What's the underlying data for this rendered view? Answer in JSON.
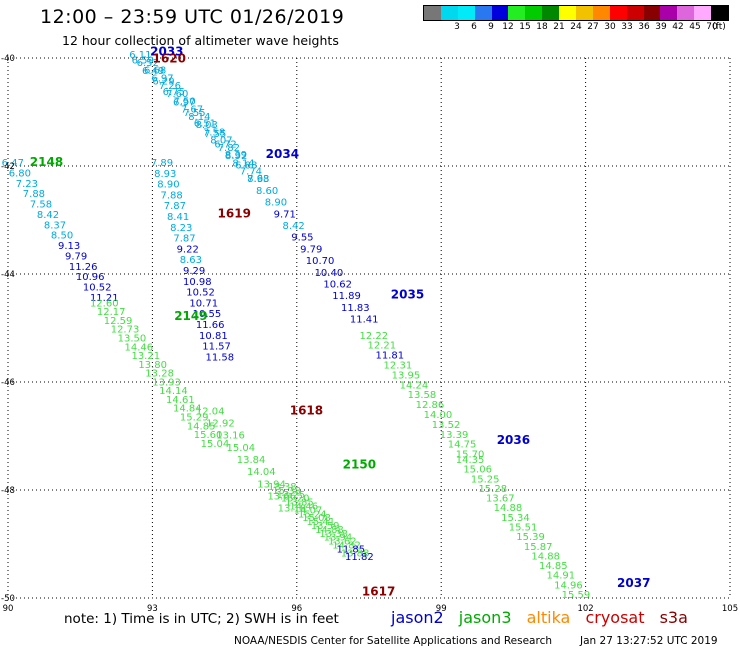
{
  "title": "12:00 – 23:59 UTC 01/26/2019",
  "subtitle": "12 hour collection of altimeter wave heights",
  "legend": {
    "unit": "(ft)",
    "items": [
      {
        "label": "",
        "color": "#777777"
      },
      {
        "label": "3",
        "color": "#00d8f0"
      },
      {
        "label": "6",
        "color": "#00eaf8"
      },
      {
        "label": "9",
        "color": "#2a78f0"
      },
      {
        "label": "12",
        "color": "#0000dd"
      },
      {
        "label": "15",
        "color": "#22ee22"
      },
      {
        "label": "18",
        "color": "#00cc00"
      },
      {
        "label": "21",
        "color": "#008800"
      },
      {
        "label": "24",
        "color": "#ffff00"
      },
      {
        "label": "27",
        "color": "#f2c200"
      },
      {
        "label": "30",
        "color": "#ff8800"
      },
      {
        "label": "33",
        "color": "#ff0000"
      },
      {
        "label": "36",
        "color": "#cc0000"
      },
      {
        "label": "39",
        "color": "#880000"
      },
      {
        "label": "42",
        "color": "#aa00aa"
      },
      {
        "label": "45",
        "color": "#dd66dd"
      },
      {
        "label": "70",
        "color": "#ffaaff"
      },
      {
        "label": "",
        "color": "#000000"
      }
    ]
  },
  "axes": {
    "lon_ticks": [
      "90",
      "93",
      "96",
      "99",
      "102",
      "105"
    ],
    "lat_ticks": [
      "-40",
      "-42",
      "-44",
      "-46",
      "-48",
      "-50"
    ],
    "lon_range": [
      90,
      105
    ],
    "lat_range": [
      -40,
      -50
    ]
  },
  "colors": {
    "jason2": "#0000cc",
    "jason3": "#00aa00",
    "altika": "#ff8800",
    "cryosat": "#cc0000",
    "s3a": "#880000",
    "wave_low": "#00aadd",
    "wave_mid": "#0000cc",
    "wave_high": "#44dd44"
  },
  "pass_labels": [
    {
      "text": "2033",
      "lon": 93.3,
      "lat": -39.95,
      "sat": "jason2"
    },
    {
      "text": "1620",
      "lon": 93.35,
      "lat": -40.08,
      "sat": "s3a"
    },
    {
      "text": "2034",
      "lon": 95.7,
      "lat": -41.85,
      "sat": "jason2"
    },
    {
      "text": "2148",
      "lon": 90.8,
      "lat": -42.0,
      "sat": "jason3"
    },
    {
      "text": "1619",
      "lon": 94.7,
      "lat": -42.95,
      "sat": "s3a"
    },
    {
      "text": "2035",
      "lon": 98.3,
      "lat": -44.45,
      "sat": "jason2"
    },
    {
      "text": "2149",
      "lon": 93.8,
      "lat": -44.85,
      "sat": "jason3"
    },
    {
      "text": "1618",
      "lon": 96.2,
      "lat": -46.6,
      "sat": "s3a"
    },
    {
      "text": "2036",
      "lon": 100.5,
      "lat": -47.15,
      "sat": "jason2"
    },
    {
      "text": "2150",
      "lon": 97.3,
      "lat": -47.6,
      "sat": "jason3"
    },
    {
      "text": "2037",
      "lon": 103.0,
      "lat": -49.8,
      "sat": "jason2"
    },
    {
      "text": "1617",
      "lon": 97.7,
      "lat": -49.95,
      "sat": "s3a"
    }
  ],
  "tracks": [
    {
      "pass": "1620",
      "sat": "s3a",
      "start": {
        "lon": 92.75,
        "lat": -40.0
      },
      "end": {
        "lon": 95.2,
        "lat": -42.3
      },
      "values": [
        "6.11",
        "6.52",
        "6.68",
        "6.97",
        "7.26",
        "7.60",
        "7.50",
        "7.67",
        "8.14",
        "8.03",
        "7.58",
        "8.07",
        "7.82",
        "8.92",
        "8.14",
        "7.74",
        "7.93"
      ]
    },
    {
      "pass": "2033",
      "sat": "jason2",
      "start": {
        "lon": 92.8,
        "lat": -40.1
      },
      "end": {
        "lon": 94.95,
        "lat": -42.05
      },
      "values": [
        "6.59",
        "6.49",
        "6.29",
        "6.75",
        "6.97",
        "7.55",
        "6.51",
        "7.55",
        "6.72",
        "8.39",
        "6.88"
      ]
    },
    {
      "pass": "1619",
      "sat": "s3a",
      "start": {
        "lon": 93.2,
        "lat": -42.0
      },
      "end": {
        "lon": 94.4,
        "lat": -45.6
      },
      "values": [
        "7.89",
        "8.93",
        "8.90",
        "7.88",
        "7.87",
        "8.41",
        "8.23",
        "7.87",
        "9.22",
        "8.63",
        "9.29",
        "10.98",
        "10.52",
        "10.71",
        "10.55",
        "11.66",
        "10.81",
        "11.57",
        "11.58"
      ]
    },
    {
      "pass": "2034",
      "sat": "jason2",
      "start": {
        "lon": 95.2,
        "lat": -42.3
      },
      "end": {
        "lon": 97.4,
        "lat": -44.9
      },
      "values": [
        "8.68",
        "8.60",
        "8.90",
        "9.71",
        "8.42",
        "9.55",
        "9.79",
        "10.70",
        "10.40",
        "10.62",
        "11.89",
        "11.83",
        "11.41"
      ]
    },
    {
      "pass": "2148",
      "sat": "jason3",
      "start": {
        "lon": 90.1,
        "lat": -42.0
      },
      "end": {
        "lon": 92.0,
        "lat": -44.5
      },
      "values": [
        "6.47",
        "6.80",
        "7.23",
        "7.88",
        "7.58",
        "8.42",
        "8.37",
        "8.50",
        "9.13",
        "9.79",
        "11.26",
        "10.96",
        "10.52",
        "11.21"
      ]
    },
    {
      "pass": "2149",
      "sat": "jason3",
      "start": {
        "lon": 92.0,
        "lat": -44.6
      },
      "end": {
        "lon": 94.3,
        "lat": -47.2
      },
      "values": [
        "12.60",
        "12.17",
        "12.59",
        "12.73",
        "13.50",
        "14.46",
        "13.21",
        "13.80",
        "13.28",
        "13.93",
        "14.14",
        "14.61",
        "14.84",
        "15.29",
        "14.85",
        "15.60",
        "15.04"
      ]
    },
    {
      "pass": "1618",
      "sat": "s3a",
      "start": {
        "lon": 94.2,
        "lat": -46.6
      },
      "end": {
        "lon": 95.9,
        "lat": -48.4
      },
      "values": [
        "12.04",
        "12.92",
        "13.16",
        "15.04",
        "13.84",
        "14.04",
        "13.94",
        "13.66",
        "13.18"
      ]
    },
    {
      "pass": "2150",
      "sat": "jason3",
      "start": {
        "lon": 95.7,
        "lat": -48.0
      },
      "end": {
        "lon": 97.3,
        "lat": -49.3
      },
      "values": [
        "13.38",
        "15.38",
        "13.25",
        "15.20",
        "13.85",
        "14.46",
        "14.07",
        "15.24",
        "15.08",
        "15.41",
        "13.59",
        "14.88",
        "13.38",
        "13.94",
        "13.62",
        "14.82",
        "11.85",
        "13.88",
        "11.82"
      ]
    },
    {
      "pass": "2035",
      "sat": "jason2",
      "start": {
        "lon": 97.6,
        "lat": -45.2
      },
      "end": {
        "lon": 99.6,
        "lat": -47.4
      },
      "values": [
        "12.22",
        "12.21",
        "11.81",
        "12.31",
        "13.95",
        "14.24",
        "13.58",
        "12.86",
        "14.00",
        "13.52",
        "13.39",
        "14.75",
        "15.70"
      ]
    },
    {
      "pass": "2036",
      "sat": "jason2",
      "start": {
        "lon": 99.6,
        "lat": -47.5
      },
      "end": {
        "lon": 101.8,
        "lat": -50.0
      },
      "values": [
        "14.35",
        "15.06",
        "15.25",
        "15.28",
        "13.67",
        "14.88",
        "15.34",
        "15.51",
        "15.39",
        "15.87",
        "14.88",
        "14.85",
        "14.91",
        "14.96",
        "15.59"
      ]
    }
  ],
  "note": "note:  1) Time is in UTC;  2) SWH is in feet",
  "satellites": [
    "jason2",
    "jason3",
    "altika",
    "cryosat",
    "s3a"
  ],
  "credit": "NOAA/NESDIS Center for Satellite Applications and Research",
  "credit_time": "Jan 27 13:27:52 UTC 2019"
}
